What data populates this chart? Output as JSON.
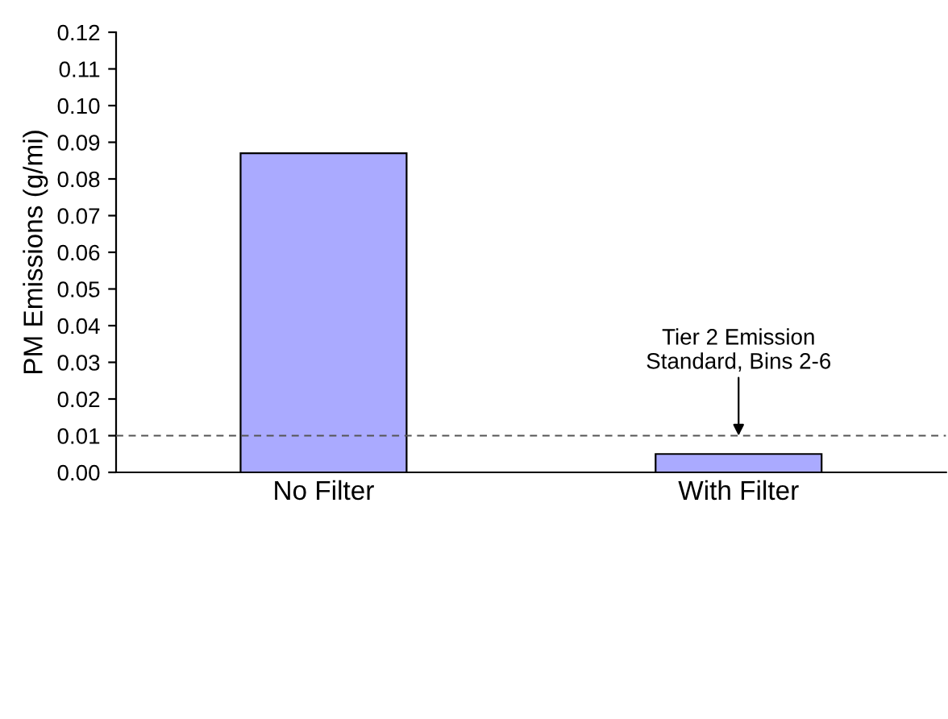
{
  "chart_data": {
    "type": "bar",
    "ylabel": "PM Emissions (g/mi)",
    "categories": [
      "No Filter",
      "With Filter"
    ],
    "values": [
      0.087,
      0.005
    ],
    "color": "#aaaaff",
    "ylim": [
      0,
      0.12
    ],
    "yticks": [
      {
        "value": 0,
        "label": "0.00"
      },
      {
        "value": 0.01,
        "label": "0.01"
      },
      {
        "value": 0.02,
        "label": "0.02"
      },
      {
        "value": 0.03,
        "label": "0.03"
      },
      {
        "value": 0.04,
        "label": "0.04"
      },
      {
        "value": 0.05,
        "label": "0.05"
      },
      {
        "value": 0.06,
        "label": "0.06"
      },
      {
        "value": 0.07,
        "label": "0.07"
      },
      {
        "value": 0.08,
        "label": "0.08"
      },
      {
        "value": 0.09,
        "label": "0.09"
      },
      {
        "value": 0.1,
        "label": "0.10"
      },
      {
        "value": 0.11,
        "label": "0.11"
      },
      {
        "value": 0.12,
        "label": "0.12"
      }
    ],
    "ref_lines": [
      {
        "axis": "y",
        "value": 0.01,
        "line_style": "dashed",
        "color": "#555555"
      }
    ],
    "annotations": [
      {
        "text": "Tier 2 Emission\nStandard, Bins 2-6",
        "x": "With Filter",
        "y": 0.01
      }
    ],
    "grid": false
  }
}
